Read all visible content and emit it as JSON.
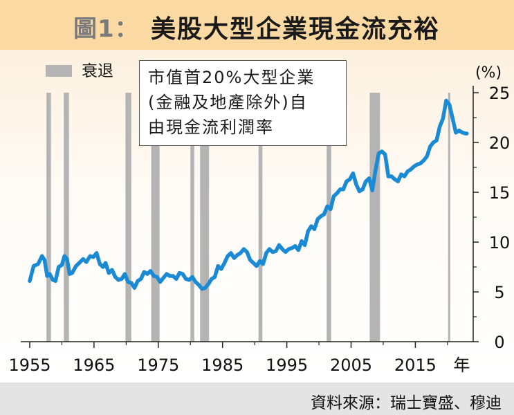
{
  "header": {
    "title_prefix": "圖1：",
    "title_main": "美股大型企業現金流充裕"
  },
  "annotation": {
    "line1": "市值首20%大型企業",
    "line2": "(金融及地產除外)自",
    "line3": "由現金流利潤率"
  },
  "source": "資料來源：瑞士寶盛、穆迪",
  "colors": {
    "series": "#1a8ad4",
    "recession": "#b4b4b4",
    "header_bg": "#fbd9a3"
  },
  "chart_data": {
    "type": "line",
    "title": "美股大型企業現金流充裕",
    "ylabel": "(%)",
    "xlabel": "年",
    "xlim": [
      1955,
      2024
    ],
    "ylim": [
      0,
      25
    ],
    "x_ticks": [
      1955,
      1965,
      1975,
      1985,
      1995,
      2005,
      2015
    ],
    "x_tick_labels": [
      "1955",
      "1965",
      "1975",
      "1985",
      "1995",
      "2005",
      "2015"
    ],
    "x_unit_label": "年",
    "y_ticks": [
      0,
      5,
      10,
      15,
      20,
      25
    ],
    "y_tick_labels": [
      "0",
      "5",
      "10",
      "15",
      "20",
      "25"
    ],
    "y_axis_position": "right",
    "legend": {
      "label": "衰退",
      "placement": "top-left"
    },
    "recessions": [
      [
        1957.6,
        1958.3
      ],
      [
        1960.3,
        1961.1
      ],
      [
        1969.9,
        1970.8
      ],
      [
        1973.9,
        1975.2
      ],
      [
        1980.0,
        1980.6
      ],
      [
        1981.5,
        1982.9
      ],
      [
        1990.6,
        1991.2
      ],
      [
        2001.2,
        2001.9
      ],
      [
        2007.9,
        2009.5
      ],
      [
        2020.1,
        2020.4
      ]
    ],
    "series": [
      {
        "name": "市值首20%大型企業(金融及地產除外)自由現金流利潤率",
        "x": [
          1955.0,
          1955.6,
          1956.3,
          1956.9,
          1957.3,
          1957.7,
          1958.1,
          1958.6,
          1959.0,
          1959.5,
          1960.0,
          1960.4,
          1960.8,
          1961.2,
          1961.6,
          1962.2,
          1962.7,
          1963.3,
          1963.8,
          1964.4,
          1964.9,
          1965.4,
          1965.9,
          1966.4,
          1966.8,
          1967.3,
          1967.8,
          1968.3,
          1968.8,
          1969.3,
          1969.8,
          1970.3,
          1970.8,
          1971.3,
          1971.8,
          1972.3,
          1972.8,
          1973.3,
          1973.8,
          1974.3,
          1974.8,
          1975.3,
          1975.8,
          1976.3,
          1976.8,
          1977.3,
          1977.8,
          1978.3,
          1978.8,
          1979.3,
          1979.8,
          1980.3,
          1980.8,
          1981.3,
          1981.8,
          1982.3,
          1982.8,
          1983.3,
          1983.8,
          1984.3,
          1984.8,
          1985.3,
          1985.8,
          1986.3,
          1986.8,
          1987.3,
          1987.8,
          1988.3,
          1988.8,
          1989.3,
          1989.8,
          1990.3,
          1990.8,
          1991.3,
          1991.8,
          1992.3,
          1992.8,
          1993.3,
          1993.8,
          1994.3,
          1994.8,
          1995.3,
          1995.8,
          1996.3,
          1996.8,
          1997.3,
          1997.8,
          1998.3,
          1998.8,
          1999.3,
          1999.8,
          2000.3,
          2000.8,
          2001.3,
          2001.8,
          2002.3,
          2002.8,
          2003.3,
          2003.8,
          2004.3,
          2004.8,
          2005.3,
          2005.8,
          2006.3,
          2006.8,
          2007.3,
          2007.8,
          2008.3,
          2008.8,
          2009.3,
          2009.8,
          2010.3,
          2010.8,
          2011.3,
          2011.8,
          2012.3,
          2012.8,
          2013.3,
          2013.8,
          2014.3,
          2014.8,
          2015.3,
          2015.8,
          2016.3,
          2016.8,
          2017.3,
          2017.8,
          2018.3,
          2018.8,
          2019.3,
          2019.8,
          2020.3,
          2020.8,
          2021.3,
          2021.8,
          2022.3,
          2022.8,
          2023.0
        ],
        "values": [
          6.1,
          7.6,
          7.8,
          8.6,
          8.2,
          6.6,
          6.8,
          6.2,
          6.1,
          7.5,
          7.7,
          8.6,
          8.3,
          6.8,
          6.9,
          7.6,
          7.9,
          8.3,
          8.0,
          8.6,
          8.5,
          8.9,
          7.8,
          7.5,
          7.9,
          6.9,
          7.2,
          6.5,
          6.2,
          6.3,
          6.8,
          6.0,
          5.9,
          5.4,
          6.1,
          6.3,
          7.0,
          6.8,
          7.1,
          6.6,
          6.5,
          6.0,
          6.4,
          6.8,
          6.6,
          6.6,
          6.3,
          6.9,
          6.8,
          6.3,
          6.2,
          6.5,
          6.0,
          5.7,
          5.3,
          5.4,
          5.8,
          6.3,
          6.5,
          7.6,
          7.3,
          7.9,
          8.6,
          8.9,
          8.4,
          8.7,
          8.9,
          9.3,
          9.0,
          8.2,
          7.9,
          7.6,
          8.1,
          7.8,
          8.9,
          9.3,
          9.0,
          9.1,
          9.7,
          9.3,
          9.0,
          9.3,
          9.4,
          9.6,
          9.2,
          10.1,
          9.7,
          11.1,
          11.6,
          11.3,
          12.3,
          12.6,
          12.8,
          13.6,
          13.3,
          14.6,
          14.9,
          15.3,
          15.3,
          16.1,
          16.3,
          16.9,
          15.8,
          15.1,
          15.3,
          16.1,
          16.4,
          15.2,
          17.2,
          18.9,
          19.1,
          18.8,
          16.6,
          16.6,
          16.3,
          16.1,
          16.8,
          16.6,
          17.1,
          17.3,
          17.6,
          17.8,
          17.9,
          18.2,
          18.6,
          19.6,
          20.0,
          20.2,
          21.6,
          22.4,
          24.2,
          23.8,
          22.4,
          21.0,
          21.2,
          21.0,
          20.9,
          20.9
        ]
      }
    ]
  }
}
